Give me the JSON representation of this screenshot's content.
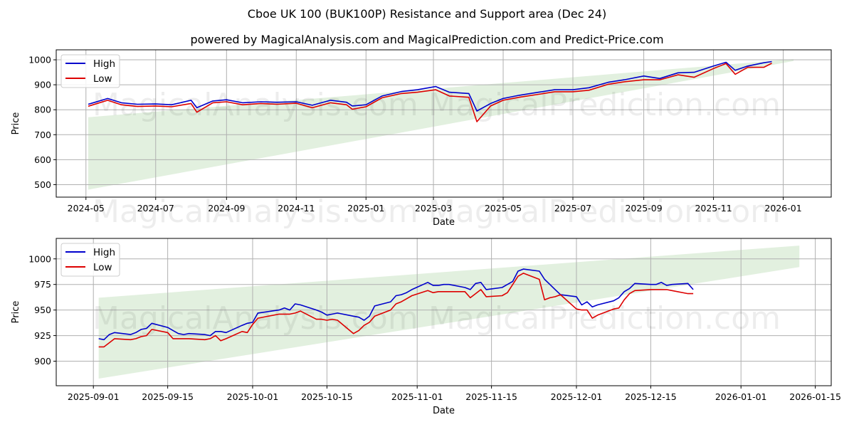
{
  "header": {
    "title": "Cboe UK 100 (BUK100P) Resistance and Support area (Dec 24)",
    "subtitle": "powered by MagicalAnalysis.com and MagicalPrediction.com and Predict-Price.com"
  },
  "watermarks": [
    "MagicalAnalysis.com",
    "MagicalPrediction.com"
  ],
  "colors": {
    "high": "#0000cc",
    "low": "#dd0000",
    "band": "#d6ead2",
    "grid": "#b0b0b0"
  },
  "chart_data": [
    {
      "type": "line",
      "title": "",
      "xlabel": "Date",
      "ylabel": "Price",
      "ylim": [
        450,
        1040
      ],
      "yticks": [
        500,
        600,
        700,
        800,
        900,
        1000
      ],
      "xticks": [
        "2024-05",
        "2024-07",
        "2024-09",
        "2024-11",
        "2025-01",
        "2025-03",
        "2025-05",
        "2025-07",
        "2025-09",
        "2025-11",
        "2026-01"
      ],
      "grid": true,
      "legend": {
        "position": "upper left",
        "entries": [
          "High",
          "Low"
        ]
      },
      "band": {
        "label": "Resistance/Support area",
        "start": {
          "date": "2024-05-03",
          "upper": 770,
          "lower": 480
        },
        "end": {
          "date": "2026-01-10",
          "upper": 1003,
          "lower": 995
        }
      },
      "x": [
        "2024-05-03",
        "2024-05-20",
        "2024-06-01",
        "2024-06-15",
        "2024-07-01",
        "2024-07-15",
        "2024-08-01",
        "2024-08-06",
        "2024-08-20",
        "2024-09-01",
        "2024-09-15",
        "2024-10-01",
        "2024-10-15",
        "2024-11-01",
        "2024-11-15",
        "2024-12-01",
        "2024-12-15",
        "2024-12-20",
        "2025-01-01",
        "2025-01-15",
        "2025-02-01",
        "2025-02-15",
        "2025-03-03",
        "2025-03-15",
        "2025-04-01",
        "2025-04-08",
        "2025-04-20",
        "2025-05-01",
        "2025-05-15",
        "2025-06-01",
        "2025-06-15",
        "2025-07-01",
        "2025-07-15",
        "2025-08-01",
        "2025-08-15",
        "2025-09-01",
        "2025-09-15",
        "2025-10-01",
        "2025-10-15",
        "2025-11-01",
        "2025-11-12",
        "2025-11-20",
        "2025-12-01",
        "2025-12-15",
        "2025-12-22"
      ],
      "series": [
        {
          "name": "High",
          "values": [
            822,
            845,
            828,
            822,
            823,
            820,
            838,
            808,
            835,
            840,
            828,
            832,
            830,
            832,
            818,
            838,
            830,
            815,
            820,
            855,
            873,
            880,
            893,
            870,
            865,
            795,
            825,
            845,
            858,
            870,
            880,
            880,
            888,
            910,
            920,
            935,
            925,
            948,
            950,
            975,
            990,
            958,
            975,
            988,
            993
          ]
        },
        {
          "name": "Low",
          "values": [
            814,
            838,
            820,
            813,
            815,
            812,
            825,
            790,
            828,
            832,
            820,
            825,
            822,
            826,
            808,
            828,
            820,
            802,
            812,
            848,
            865,
            870,
            880,
            855,
            850,
            752,
            815,
            838,
            850,
            862,
            872,
            872,
            878,
            902,
            912,
            920,
            920,
            940,
            930,
            965,
            985,
            942,
            970,
            970,
            986
          ]
        }
      ]
    },
    {
      "type": "line",
      "title": "",
      "xlabel": "Date",
      "ylabel": "Price",
      "ylim": [
        876,
        1020
      ],
      "yticks": [
        900,
        925,
        950,
        975,
        1000
      ],
      "xticks": [
        "2025-09-01",
        "2025-09-15",
        "2025-10-01",
        "2025-10-15",
        "2025-11-01",
        "2025-11-15",
        "2025-12-01",
        "2025-12-15",
        "2026-01-01",
        "2026-01-15"
      ],
      "grid": true,
      "legend": {
        "position": "upper left",
        "entries": [
          "High",
          "Low"
        ]
      },
      "band": {
        "label": "Resistance/Support area",
        "start": {
          "date": "2025-09-02",
          "upper": 962,
          "lower": 883
        },
        "end": {
          "date": "2026-01-12",
          "upper": 1013,
          "lower": 992
        }
      },
      "x": [
        "2025-09-02",
        "2025-09-03",
        "2025-09-04",
        "2025-09-05",
        "2025-09-08",
        "2025-09-09",
        "2025-09-10",
        "2025-09-11",
        "2025-09-12",
        "2025-09-15",
        "2025-09-16",
        "2025-09-17",
        "2025-09-18",
        "2025-09-19",
        "2025-09-22",
        "2025-09-23",
        "2025-09-24",
        "2025-09-25",
        "2025-09-26",
        "2025-09-29",
        "2025-09-30",
        "2025-10-01",
        "2025-10-02",
        "2025-10-06",
        "2025-10-07",
        "2025-10-08",
        "2025-10-09",
        "2025-10-10",
        "2025-10-13",
        "2025-10-14",
        "2025-10-15",
        "2025-10-16",
        "2025-10-17",
        "2025-10-20",
        "2025-10-21",
        "2025-10-22",
        "2025-10-23",
        "2025-10-24",
        "2025-10-27",
        "2025-10-28",
        "2025-10-29",
        "2025-10-30",
        "2025-10-31",
        "2025-11-03",
        "2025-11-04",
        "2025-11-05",
        "2025-11-06",
        "2025-11-07",
        "2025-11-10",
        "2025-11-11",
        "2025-11-12",
        "2025-11-13",
        "2025-11-14",
        "2025-11-17",
        "2025-11-18",
        "2025-11-19",
        "2025-11-20",
        "2025-11-21",
        "2025-11-24",
        "2025-11-25",
        "2025-11-26",
        "2025-11-27",
        "2025-11-28",
        "2025-12-01",
        "2025-12-02",
        "2025-12-03",
        "2025-12-04",
        "2025-12-05",
        "2025-12-08",
        "2025-12-09",
        "2025-12-10",
        "2025-12-11",
        "2025-12-12",
        "2025-12-15",
        "2025-12-16",
        "2025-12-17",
        "2025-12-18",
        "2025-12-19",
        "2025-12-22",
        "2025-12-23"
      ],
      "series": [
        {
          "name": "High",
          "values": [
            922,
            921,
            926,
            928,
            926,
            928,
            931,
            932,
            937,
            933,
            930,
            927,
            926,
            927,
            926,
            925,
            929,
            929,
            928,
            935,
            937,
            938,
            947,
            950,
            952,
            950,
            956,
            955,
            950,
            948,
            945,
            946,
            947,
            944,
            943,
            940,
            944,
            954,
            958,
            964,
            965,
            967,
            970,
            977,
            974,
            974,
            975,
            975,
            972,
            970,
            976,
            977,
            970,
            972,
            975,
            978,
            988,
            990,
            988,
            980,
            975,
            970,
            965,
            963,
            955,
            958,
            953,
            955,
            959,
            962,
            968,
            971,
            976,
            975,
            975,
            977,
            974,
            975,
            976,
            970
          ]
        },
        {
          "name": "Low",
          "values": [
            914,
            914,
            918,
            922,
            921,
            922,
            924,
            925,
            931,
            928,
            922,
            922,
            922,
            922,
            921,
            922,
            925,
            920,
            922,
            929,
            928,
            936,
            942,
            946,
            946,
            946,
            947,
            949,
            941,
            941,
            940,
            941,
            940,
            927,
            930,
            935,
            938,
            944,
            950,
            956,
            958,
            961,
            964,
            969,
            967,
            968,
            968,
            968,
            968,
            962,
            966,
            970,
            963,
            964,
            967,
            975,
            983,
            986,
            980,
            960,
            962,
            963,
            965,
            951,
            950,
            950,
            942,
            945,
            951,
            952,
            960,
            966,
            969,
            970,
            970,
            970,
            970,
            969,
            966,
            966
          ]
        }
      ]
    }
  ]
}
